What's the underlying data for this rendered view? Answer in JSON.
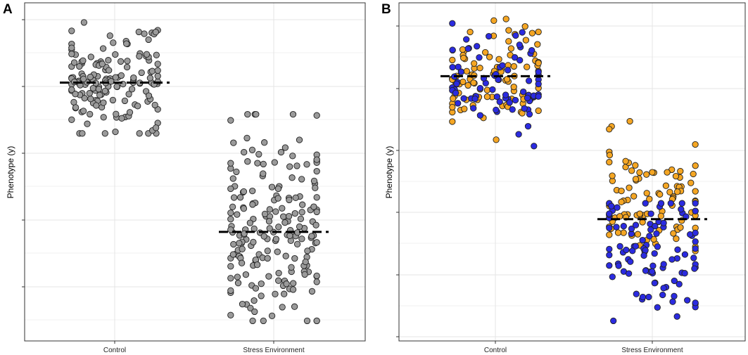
{
  "figure": {
    "panels": [
      "A",
      "B"
    ]
  },
  "chart_data": [
    {
      "panel": "A",
      "type": "scatter",
      "title": "",
      "xlabel": "",
      "ylabel": "Phenotype (y)",
      "categories": [
        "Control",
        "Stress Environment"
      ],
      "ylim": [
        0,
        100
      ],
      "grid": true,
      "colors": {
        "points": "#9a9a9a",
        "outline": "#222222",
        "mean_line": "#000000"
      },
      "series": [
        {
          "name": "Control",
          "n": 160,
          "mean": 78,
          "sd": 9,
          "spread_min": 62,
          "spread_max": 97
        },
        {
          "name": "Stress Environment",
          "n": 200,
          "mean": 31,
          "sd": 15,
          "spread_min": 3,
          "spread_max": 68
        }
      ],
      "means": [
        78,
        31
      ]
    },
    {
      "panel": "B",
      "type": "scatter",
      "title": "",
      "xlabel": "",
      "ylabel": "Phenotype (y)",
      "categories": [
        "Control",
        "Stress Environment"
      ],
      "ylim": [
        0,
        100
      ],
      "grid": true,
      "colors": {
        "group_1": "#f5a623",
        "group_2": "#2b2be0",
        "outline": "#222222",
        "mean_line": "#000000"
      },
      "series": [
        {
          "name": "Control",
          "group": "group_1",
          "n": 95,
          "mean": 80,
          "sd": 8,
          "spread_min": 58,
          "spread_max": 98
        },
        {
          "name": "Control",
          "group": "group_2",
          "n": 75,
          "mean": 78,
          "sd": 8,
          "spread_min": 58,
          "spread_max": 97
        },
        {
          "name": "Stress Environment",
          "group": "group_1",
          "n": 95,
          "mean": 42,
          "sd": 10,
          "spread_min": 25,
          "spread_max": 78
        },
        {
          "name": "Stress Environment",
          "group": "group_2",
          "n": 100,
          "mean": 24,
          "sd": 11,
          "spread_min": 3,
          "spread_max": 40
        }
      ],
      "means": [
        80,
        35
      ]
    }
  ]
}
